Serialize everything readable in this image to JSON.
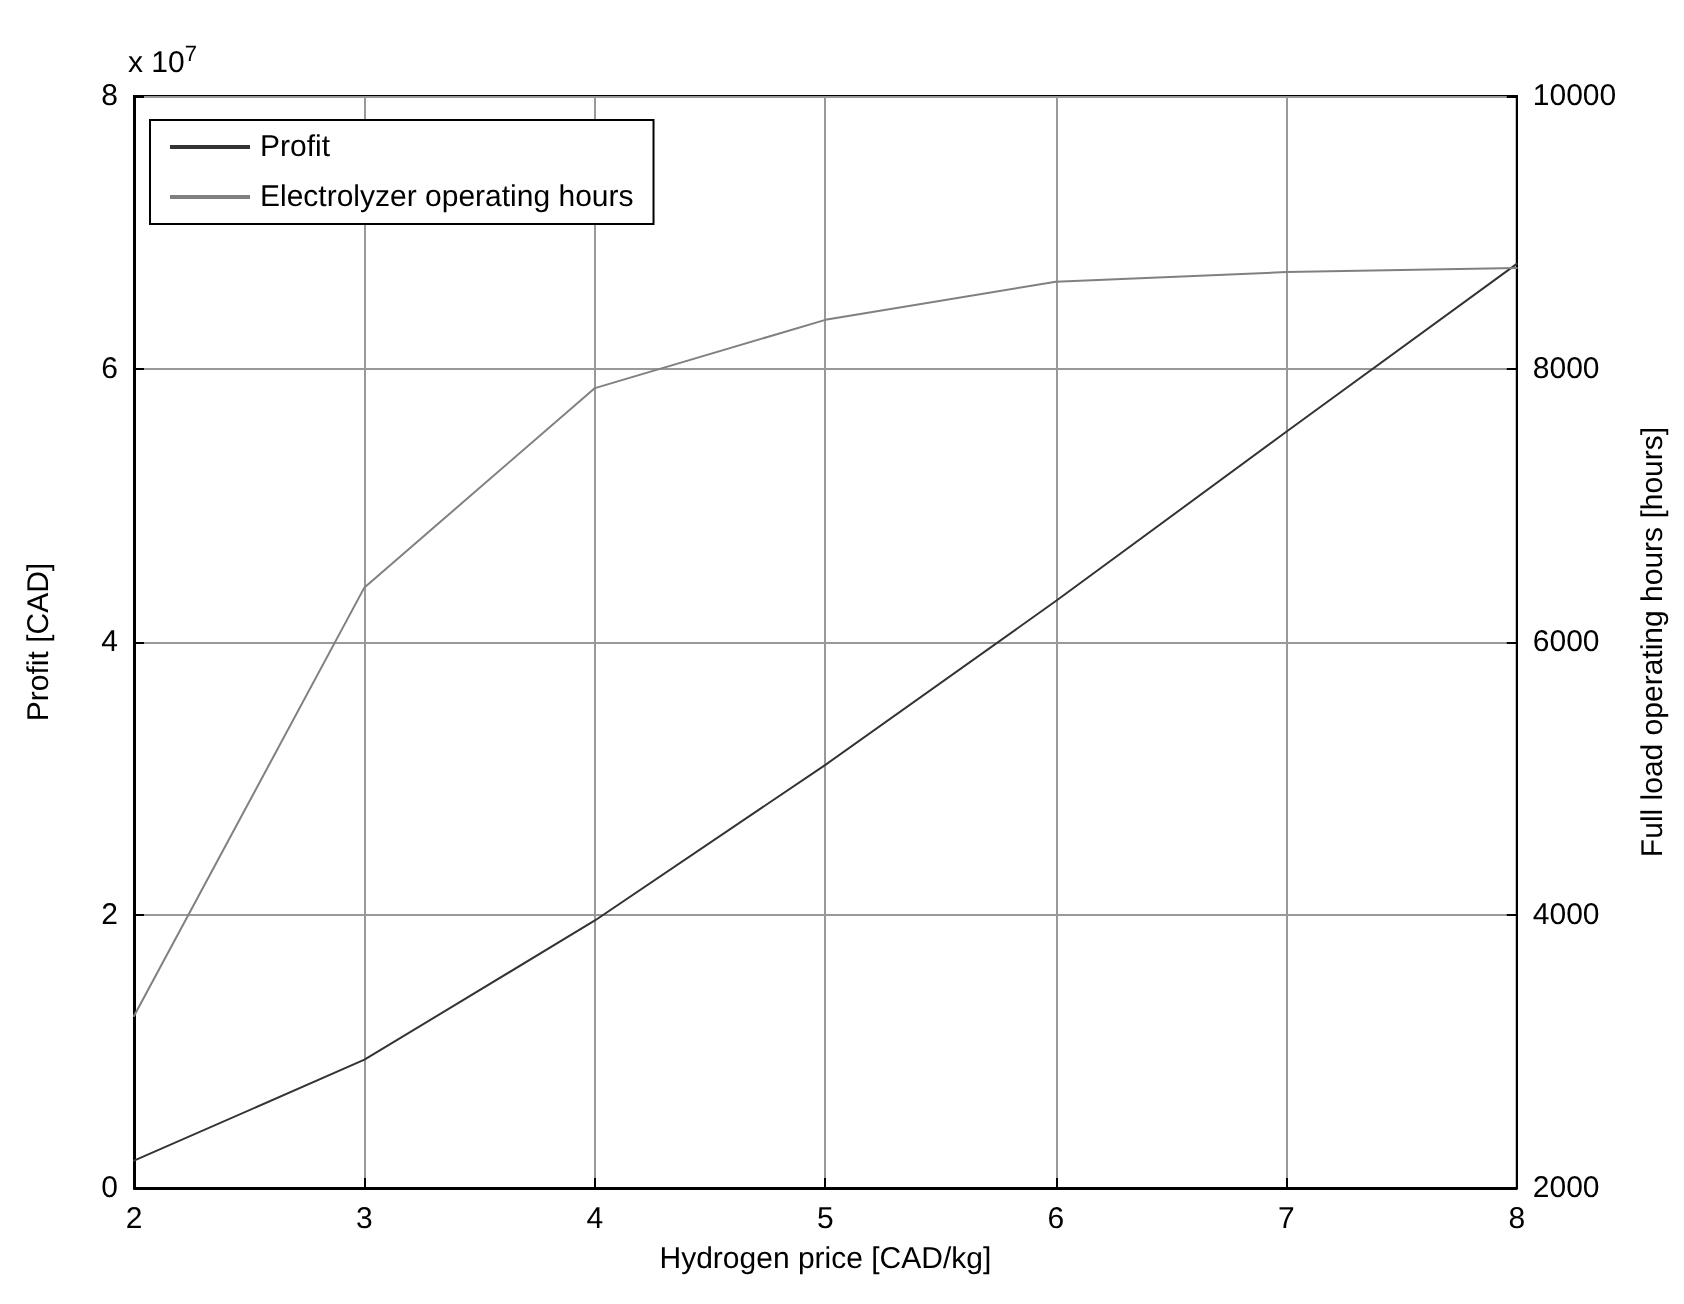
{
  "chart_data": {
    "type": "line",
    "xlabel": "Hydrogen price [CAD/kg]",
    "ylabel": "Profit [CAD]",
    "y2label": "Full load operating hours [hours]",
    "annotations": [
      "x 10$^{7}$"
    ],
    "x": [
      2,
      3,
      4,
      5,
      6,
      7,
      8
    ],
    "series": [
      {
        "name": "Profit",
        "color": "#333333",
        "values": [
          0.2,
          0.94,
          1.96,
          3.1,
          4.3,
          5.54,
          6.77
        ]
      },
      {
        "name": "Electrolyzer operating hours",
        "color": "#808080",
        "axis": "y2",
        "values": [
          3260,
          6400,
          7860,
          8360,
          8640,
          8710,
          8740
        ]
      }
    ],
    "xlim": [
      2,
      8
    ],
    "xticks": [
      2,
      3,
      4,
      5,
      6,
      7,
      8
    ],
    "ylim": [
      0,
      8
    ],
    "yticks": [
      0,
      2,
      4,
      6,
      8
    ],
    "y2lim": [
      2000,
      10000
    ],
    "y2ticks": [
      2000,
      4000,
      6000,
      8000,
      10000
    ],
    "grid": true,
    "legend": "top left",
    "marker": "none",
    "line_style": "solid"
  }
}
